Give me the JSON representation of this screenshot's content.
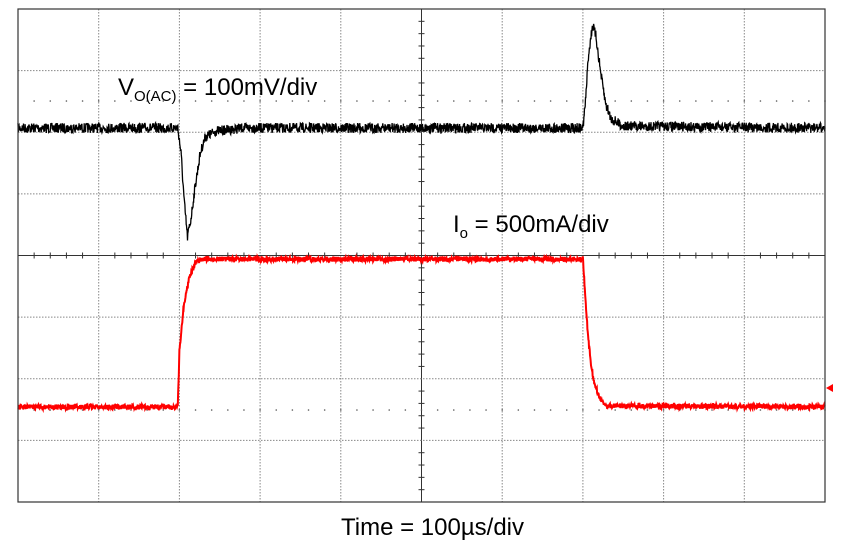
{
  "chart_data": {
    "type": "line",
    "title": "",
    "xlabel": "Time = 100µs/div",
    "grid": true,
    "divisions": {
      "horizontal": 10,
      "vertical": 8
    },
    "x_unit": "µs",
    "xlim": [
      0,
      1000
    ],
    "series": [
      {
        "name": "V",
        "name_sub": "O(AC)",
        "scale_text": " = 100mV/div",
        "unit": "mV",
        "color": "#000000",
        "points": [
          [
            0,
            0
          ],
          [
            198,
            0
          ],
          [
            202,
            -40
          ],
          [
            206,
            -120
          ],
          [
            210,
            -177
          ],
          [
            214,
            -150
          ],
          [
            220,
            -90
          ],
          [
            226,
            -40
          ],
          [
            232,
            -15
          ],
          [
            245,
            -5
          ],
          [
            280,
            0
          ],
          [
            700,
            0
          ],
          [
            703,
            40
          ],
          [
            707,
            120
          ],
          [
            712,
            167
          ],
          [
            716,
            150
          ],
          [
            722,
            90
          ],
          [
            728,
            40
          ],
          [
            735,
            15
          ],
          [
            750,
            3
          ],
          [
            1000,
            0
          ]
        ]
      },
      {
        "name": "I",
        "name_sub": "o",
        "scale_text": " = 500mA/div",
        "unit": "A",
        "color": "#ff0000",
        "points": [
          [
            0,
            0
          ],
          [
            198,
            0
          ],
          [
            200,
            0.45
          ],
          [
            205,
            0.8
          ],
          [
            212,
            1.05
          ],
          [
            220,
            1.17
          ],
          [
            230,
            1.2
          ],
          [
            700,
            1.2
          ],
          [
            702,
            1.0
          ],
          [
            706,
            0.6
          ],
          [
            710,
            0.35
          ],
          [
            714,
            0.2
          ],
          [
            720,
            0.08
          ],
          [
            728,
            0.01
          ],
          [
            1000,
            0
          ]
        ]
      }
    ]
  }
}
